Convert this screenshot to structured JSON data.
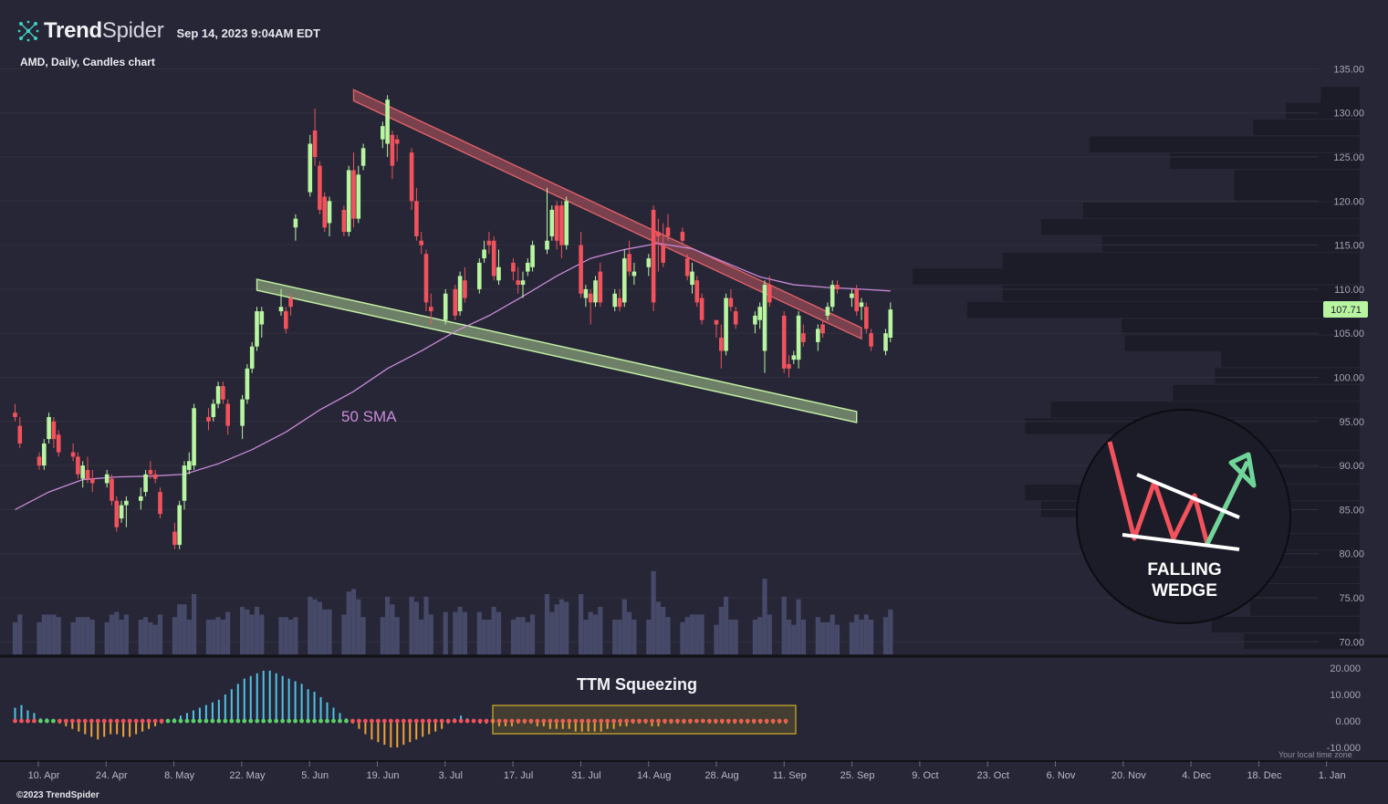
{
  "header": {
    "brand_bold": "Trend",
    "brand_light": "Spider",
    "timestamp": "Sep 14, 2023 9:04AM EDT",
    "symbol_line": "AMD, Daily, Candles chart"
  },
  "footer": {
    "copyright": "©2023 TrendSpider",
    "timezone_note": "Your local time zone"
  },
  "colors": {
    "background": "#262636",
    "up_candle": "#b8f5a0",
    "down_candle": "#f2525c",
    "sma": "#c98bd8",
    "upper_trendline": "#e0626a",
    "lower_trendline": "#c5f0a5",
    "volume": "#464a68",
    "histogram_up": "#4fc3e6",
    "histogram_down": "#f0a43a",
    "squeeze_on": "#f2525c",
    "squeeze_off": "#5bd06a",
    "price_tag": "#b8f5a0"
  },
  "chart_data": {
    "type": "candlestick",
    "title": "AMD, Daily, Candles chart",
    "ticker": "AMD",
    "interval": "Daily",
    "last_price_label": "107.71",
    "y_axis": {
      "ticks": [
        "135.00",
        "130.00",
        "125.00",
        "120.00",
        "115.00",
        "110.00",
        "105.00",
        "100.00",
        "95.00",
        "90.00",
        "85.00",
        "80.00",
        "75.00",
        "70.00"
      ],
      "ylim": [
        68,
        137
      ]
    },
    "x_axis": {
      "ticks": [
        "10. Apr",
        "24. Apr",
        "8. May",
        "22. May",
        "5. Jun",
        "19. Jun",
        "3. Jul",
        "17. Jul",
        "31. Jul",
        "14. Aug",
        "28. Aug",
        "11. Sep",
        "25. Sep",
        "9. Oct",
        "23. Oct",
        "6. Nov",
        "20. Nov",
        "4. Dec",
        "18. Dec",
        "1. Jan"
      ]
    },
    "annotations": {
      "sma_label": "50 SMA",
      "squeeze_label": "TTM Squeezing",
      "pattern_label": "FALLING WEDGE"
    },
    "trendlines": {
      "upper": {
        "from": [
          "2023-06-14",
          132.0
        ],
        "to": [
          "2023-09-27",
          105.0
        ]
      },
      "lower": {
        "from": [
          "2023-05-25",
          110.5
        ],
        "to": [
          "2023-09-26",
          95.5
        ]
      }
    },
    "candles": [
      [
        "2023-04-05",
        96.0,
        97.0,
        95.0,
        95.5
      ],
      [
        "2023-04-06",
        94.5,
        95.5,
        92.0,
        92.5
      ],
      [
        "2023-04-10",
        91.0,
        91.5,
        89.5,
        90.0
      ],
      [
        "2023-04-11",
        90.0,
        93.0,
        89.5,
        92.5
      ],
      [
        "2023-04-12",
        93.0,
        96.0,
        92.5,
        95.5
      ],
      [
        "2023-04-13",
        95.0,
        95.5,
        92.0,
        93.0
      ],
      [
        "2023-04-14",
        93.5,
        94.0,
        91.0,
        91.5
      ],
      [
        "2023-04-17",
        91.5,
        92.5,
        90.5,
        91.0
      ],
      [
        "2023-04-18",
        91.0,
        91.5,
        88.5,
        89.0
      ],
      [
        "2023-04-19",
        88.5,
        90.5,
        87.5,
        90.0
      ],
      [
        "2023-04-20",
        89.5,
        91.0,
        88.0,
        88.5
      ],
      [
        "2023-04-21",
        88.5,
        89.5,
        87.0,
        88.0
      ],
      [
        "2023-04-24",
        88.0,
        89.5,
        87.5,
        89.0
      ],
      [
        "2023-04-25",
        88.5,
        89.0,
        85.5,
        86.0
      ],
      [
        "2023-04-26",
        86.0,
        86.5,
        82.5,
        83.0
      ],
      [
        "2023-04-27",
        84.0,
        86.0,
        83.5,
        85.5
      ],
      [
        "2023-04-28",
        85.5,
        86.5,
        83.0,
        86.0
      ],
      [
        "2023-05-01",
        86.0,
        87.5,
        85.0,
        86.5
      ],
      [
        "2023-05-02",
        87.0,
        89.5,
        86.5,
        89.0
      ],
      [
        "2023-05-03",
        89.5,
        90.5,
        88.5,
        89.0
      ],
      [
        "2023-05-04",
        89.0,
        89.5,
        88.0,
        88.5
      ],
      [
        "2023-05-05",
        87.0,
        87.5,
        84.0,
        84.5
      ],
      [
        "2023-05-08",
        82.5,
        83.5,
        80.5,
        81.0
      ],
      [
        "2023-05-09",
        81.0,
        86.0,
        80.5,
        85.5
      ],
      [
        "2023-05-10",
        86.0,
        90.5,
        85.0,
        90.0
      ],
      [
        "2023-05-11",
        89.5,
        91.5,
        89.0,
        90.5
      ],
      [
        "2023-05-12",
        90.0,
        97.0,
        89.5,
        96.5
      ],
      [
        "2023-05-15",
        95.5,
        96.5,
        94.0,
        95.0
      ],
      [
        "2023-05-16",
        95.5,
        97.5,
        95.0,
        97.0
      ],
      [
        "2023-05-17",
        97.0,
        99.5,
        96.5,
        99.0
      ],
      [
        "2023-05-18",
        99.0,
        99.5,
        97.0,
        97.5
      ],
      [
        "2023-05-19",
        97.0,
        97.5,
        93.5,
        94.5
      ],
      [
        "2023-05-22",
        94.5,
        98.0,
        93.0,
        97.5
      ],
      [
        "2023-05-23",
        97.5,
        101.5,
        97.0,
        101.0
      ],
      [
        "2023-05-24",
        101.0,
        104.0,
        100.5,
        103.5
      ],
      [
        "2023-05-25",
        103.5,
        108.0,
        103.0,
        107.5
      ],
      [
        "2023-05-26",
        106.0,
        108.0,
        104.5,
        107.5
      ],
      [
        "2023-05-30",
        107.5,
        110.0,
        107.0,
        108.0
      ],
      [
        "2023-05-31",
        107.5,
        108.0,
        105.0,
        105.5
      ],
      [
        "2023-06-01",
        109.0,
        109.5,
        107.0,
        108.0
      ],
      [
        "2023-06-02",
        117.0,
        118.5,
        115.5,
        118.0
      ],
      [
        "2023-06-05",
        121.0,
        127.5,
        120.5,
        126.5
      ],
      [
        "2023-06-06",
        128.0,
        130.5,
        124.0,
        125.0
      ],
      [
        "2023-06-07",
        124.0,
        124.5,
        118.5,
        119.0
      ],
      [
        "2023-06-08",
        120.5,
        121.0,
        116.5,
        117.0
      ],
      [
        "2023-06-09",
        117.5,
        120.5,
        116.0,
        120.0
      ],
      [
        "2023-06-12",
        119.0,
        119.5,
        116.0,
        116.5
      ],
      [
        "2023-06-13",
        116.5,
        124.0,
        116.0,
        123.5
      ],
      [
        "2023-06-14",
        123.5,
        125.5,
        117.0,
        118.0
      ],
      [
        "2023-06-15",
        118.0,
        124.0,
        117.5,
        123.0
      ],
      [
        "2023-06-16",
        124.0,
        126.5,
        123.5,
        126.0
      ],
      [
        "2023-06-20",
        127.0,
        129.0,
        126.0,
        128.5
      ],
      [
        "2023-06-21",
        126.5,
        132.0,
        125.0,
        131.5
      ],
      [
        "2023-06-22",
        127.5,
        128.0,
        122.5,
        124.0
      ],
      [
        "2023-06-23",
        127.0,
        127.5,
        124.5,
        126.5
      ],
      [
        "2023-06-26",
        125.5,
        126.0,
        119.0,
        120.0
      ],
      [
        "2023-06-27",
        120.0,
        121.5,
        115.5,
        116.0
      ],
      [
        "2023-06-28",
        115.5,
        116.5,
        114.0,
        115.0
      ],
      [
        "2023-06-29",
        114.0,
        114.5,
        107.5,
        108.5
      ],
      [
        "2023-06-30",
        108.0,
        109.5,
        106.0,
        107.5
      ],
      [
        "2023-07-03",
        106.5,
        110.0,
        106.0,
        109.5
      ],
      [
        "2023-07-05",
        110.0,
        110.5,
        106.5,
        107.0
      ],
      [
        "2023-07-06",
        107.5,
        112.0,
        107.0,
        111.5
      ],
      [
        "2023-07-07",
        111.0,
        112.5,
        108.5,
        109.0
      ],
      [
        "2023-07-10",
        110.0,
        113.5,
        109.5,
        113.0
      ],
      [
        "2023-07-11",
        113.5,
        115.5,
        113.0,
        114.5
      ],
      [
        "2023-07-12",
        115.5,
        116.5,
        114.0,
        115.0
      ],
      [
        "2023-07-13",
        115.5,
        116.0,
        111.0,
        111.5
      ],
      [
        "2023-07-14",
        111.0,
        114.5,
        110.5,
        112.5
      ],
      [
        "2023-07-17",
        113.0,
        113.5,
        111.0,
        112.0
      ],
      [
        "2023-07-18",
        111.0,
        112.5,
        109.5,
        110.5
      ],
      [
        "2023-07-19",
        110.5,
        112.0,
        109.0,
        111.0
      ],
      [
        "2023-07-20",
        112.0,
        113.5,
        111.5,
        113.0
      ],
      [
        "2023-07-21",
        112.5,
        115.5,
        112.0,
        115.0
      ],
      [
        "2023-07-24",
        114.5,
        121.5,
        114.0,
        115.5
      ],
      [
        "2023-07-25",
        116.0,
        119.5,
        115.5,
        119.0
      ],
      [
        "2023-07-26",
        119.5,
        120.0,
        114.5,
        115.5
      ],
      [
        "2023-07-27",
        119.5,
        120.0,
        113.5,
        115.0
      ],
      [
        "2023-07-28",
        115.0,
        120.5,
        114.5,
        120.0
      ],
      [
        "2023-07-31",
        115.0,
        116.5,
        109.0,
        109.5
      ],
      [
        "2023-08-01",
        109.0,
        110.5,
        108.0,
        110.0
      ],
      [
        "2023-08-02",
        109.5,
        110.0,
        106.0,
        108.5
      ],
      [
        "2023-08-03",
        108.5,
        111.5,
        108.0,
        111.0
      ],
      [
        "2023-08-04",
        112.0,
        113.0,
        108.0,
        108.5
      ],
      [
        "2023-08-07",
        108.0,
        110.0,
        107.5,
        109.5
      ],
      [
        "2023-08-08",
        109.0,
        110.0,
        107.5,
        108.0
      ],
      [
        "2023-08-09",
        108.5,
        114.5,
        108.0,
        113.5
      ],
      [
        "2023-08-10",
        114.0,
        115.5,
        111.5,
        112.0
      ],
      [
        "2023-08-11",
        111.5,
        113.0,
        110.5,
        112.0
      ],
      [
        "2023-08-14",
        112.5,
        114.0,
        111.5,
        113.5
      ],
      [
        "2023-08-15",
        119.0,
        119.5,
        107.5,
        108.5
      ],
      [
        "2023-08-16",
        116.5,
        118.0,
        112.0,
        116.0
      ],
      [
        "2023-08-17",
        115.0,
        117.5,
        112.5,
        113.0
      ],
      [
        "2023-08-18",
        117.0,
        118.5,
        115.5,
        116.0
      ],
      [
        "2023-08-21",
        116.5,
        117.0,
        115.0,
        115.5
      ],
      [
        "2023-08-22",
        113.5,
        114.0,
        111.0,
        111.5
      ],
      [
        "2023-08-23",
        110.5,
        113.0,
        109.5,
        112.0
      ],
      [
        "2023-08-24",
        111.0,
        111.5,
        108.0,
        108.5
      ],
      [
        "2023-08-25",
        109.0,
        109.5,
        106.0,
        106.5
      ],
      [
        "2023-08-28",
        106.5,
        106.0,
        104.5,
        106.0
      ],
      [
        "2023-08-29",
        104.5,
        106.0,
        101.0,
        103.0
      ],
      [
        "2023-08-30",
        103.0,
        109.5,
        102.5,
        109.0
      ],
      [
        "2023-08-31",
        109.0,
        110.0,
        107.5,
        108.0
      ],
      [
        "2023-09-01",
        107.5,
        108.0,
        105.5,
        106.0
      ],
      [
        "2023-09-05",
        106.0,
        107.5,
        105.0,
        107.0
      ],
      [
        "2023-09-06",
        106.5,
        108.5,
        105.5,
        108.0
      ],
      [
        "2023-09-07",
        103.0,
        111.0,
        100.5,
        110.5
      ],
      [
        "2023-09-08",
        110.5,
        111.5,
        108.0,
        108.5
      ],
      [
        "2023-09-11",
        107.0,
        107.5,
        100.5,
        101.0
      ],
      [
        "2023-09-12",
        101.5,
        102.5,
        100.0,
        101.0
      ],
      [
        "2023-09-13",
        102.0,
        103.0,
        101.5,
        102.5
      ],
      [
        "2023-09-14",
        102.0,
        107.5,
        101.0,
        107.0
      ],
      [
        "2023-09-15",
        105.0,
        106.0,
        103.5,
        104.0
      ],
      [
        "2023-09-18",
        104.0,
        106.0,
        103.0,
        105.5
      ],
      [
        "2023-09-19",
        106.0,
        106.5,
        104.5,
        105.0
      ],
      [
        "2023-09-20",
        107.0,
        108.5,
        106.5,
        108.0
      ],
      [
        "2023-09-21",
        108.0,
        111.0,
        107.5,
        110.5
      ],
      [
        "2023-09-22",
        110.5,
        111.0,
        109.5,
        110.0
      ],
      [
        "2023-09-25",
        109.0,
        110.0,
        108.0,
        109.5
      ],
      [
        "2023-09-26",
        110.0,
        110.5,
        107.0,
        107.5
      ],
      [
        "2023-09-27",
        108.0,
        109.0,
        106.5,
        108.5
      ],
      [
        "2023-09-28",
        108.0,
        108.5,
        105.0,
        105.5
      ],
      [
        "2023-09-29",
        105.0,
        105.5,
        103.0,
        103.5
      ],
      [
        "2023-10-02",
        103.0,
        105.5,
        102.5,
        105.0
      ],
      [
        "2023-10-03",
        104.5,
        108.5,
        104.0,
        107.7
      ]
    ],
    "sma50": [
      [
        "2023-04-05",
        85.0
      ],
      [
        "2023-04-12",
        87.0
      ],
      [
        "2023-04-19",
        88.4
      ],
      [
        "2023-04-26",
        88.7
      ],
      [
        "2023-05-03",
        88.8
      ],
      [
        "2023-05-10",
        89.0
      ],
      [
        "2023-05-17",
        90.2
      ],
      [
        "2023-05-24",
        91.8
      ],
      [
        "2023-05-31",
        93.8
      ],
      [
        "2023-06-07",
        96.3
      ],
      [
        "2023-06-14",
        98.4
      ],
      [
        "2023-06-21",
        101.0
      ],
      [
        "2023-06-28",
        103.0
      ],
      [
        "2023-07-05",
        105.2
      ],
      [
        "2023-07-12",
        107.0
      ],
      [
        "2023-07-19",
        109.2
      ],
      [
        "2023-07-26",
        111.5
      ],
      [
        "2023-08-02",
        113.5
      ],
      [
        "2023-08-09",
        114.5
      ],
      [
        "2023-08-16",
        115.2
      ],
      [
        "2023-08-23",
        114.6
      ],
      [
        "2023-08-30",
        113.0
      ],
      [
        "2023-09-06",
        111.4
      ],
      [
        "2023-09-13",
        110.5
      ],
      [
        "2023-09-20",
        110.2
      ],
      [
        "2023-09-27",
        110.0
      ],
      [
        "2023-10-03",
        109.8
      ]
    ],
    "volume_profile": [
      {
        "price": 70.0,
        "volume": 0.36
      },
      {
        "price": 71.9,
        "volume": 0.46
      },
      {
        "price": 73.8,
        "volume": 0.34
      },
      {
        "price": 75.6,
        "volume": 0.4
      },
      {
        "price": 77.5,
        "volume": 0.45
      },
      {
        "price": 79.4,
        "volume": 0.43
      },
      {
        "price": 81.3,
        "volume": 0.49
      },
      {
        "price": 83.2,
        "volume": 0.59
      },
      {
        "price": 85.0,
        "volume": 0.99
      },
      {
        "price": 86.9,
        "volume": 1.04
      },
      {
        "price": 88.8,
        "volume": 0.76
      },
      {
        "price": 90.7,
        "volume": 0.49
      },
      {
        "price": 92.6,
        "volume": 0.35
      },
      {
        "price": 94.4,
        "volume": 1.04
      },
      {
        "price": 96.3,
        "volume": 0.96
      },
      {
        "price": 98.2,
        "volume": 0.58
      },
      {
        "price": 100.1,
        "volume": 0.45
      },
      {
        "price": 102.0,
        "volume": 0.43
      },
      {
        "price": 103.8,
        "volume": 0.73
      },
      {
        "price": 105.7,
        "volume": 0.74
      },
      {
        "price": 107.6,
        "volume": 1.22
      },
      {
        "price": 109.5,
        "volume": 1.11
      },
      {
        "price": 111.4,
        "volume": 1.39
      },
      {
        "price": 113.2,
        "volume": 1.11
      },
      {
        "price": 115.1,
        "volume": 0.8
      },
      {
        "price": 117.0,
        "volume": 0.99
      },
      {
        "price": 118.9,
        "volume": 0.86
      },
      {
        "price": 120.8,
        "volume": 0.39
      },
      {
        "price": 122.6,
        "volume": 0.39
      },
      {
        "price": 124.5,
        "volume": 0.59
      },
      {
        "price": 126.4,
        "volume": 0.84
      },
      {
        "price": 128.3,
        "volume": 0.33
      },
      {
        "price": 130.2,
        "volume": 0.23
      },
      {
        "price": 132.0,
        "volume": 0.12
      }
    ],
    "squeeze_momentum": [
      5,
      6,
      4,
      3,
      1,
      1,
      0,
      -1,
      -2,
      -3,
      -4,
      -5,
      -6,
      -7,
      -6,
      -5,
      -5,
      -6,
      -6,
      -5,
      -4,
      -3,
      -2,
      -1,
      0,
      1,
      2,
      3,
      4,
      5,
      6,
      7,
      8,
      10,
      12,
      14,
      16,
      17,
      18,
      19,
      19,
      18,
      17,
      16,
      15,
      14,
      12,
      11,
      9,
      7,
      5,
      3,
      1,
      -1,
      -3,
      -5,
      -7,
      -8,
      -9,
      -10,
      -10,
      -9,
      -8,
      -7,
      -6,
      -5,
      -4,
      -3,
      -1,
      1,
      2,
      1,
      0,
      -1,
      -1,
      -1,
      -2,
      -2,
      -2,
      -1,
      -1,
      -1,
      -2,
      -2,
      -3,
      -3,
      -3,
      -3,
      -4,
      -4,
      -4,
      -4,
      -4,
      -3,
      -3,
      -2,
      -2,
      -1,
      -1,
      -1,
      -2,
      -2,
      -1,
      -1,
      -1,
      -1,
      -1,
      0,
      0,
      -1,
      -1,
      -1,
      -1,
      -1,
      -1,
      -1,
      -1,
      -1,
      -1,
      -1,
      -1,
      -1
    ]
  }
}
